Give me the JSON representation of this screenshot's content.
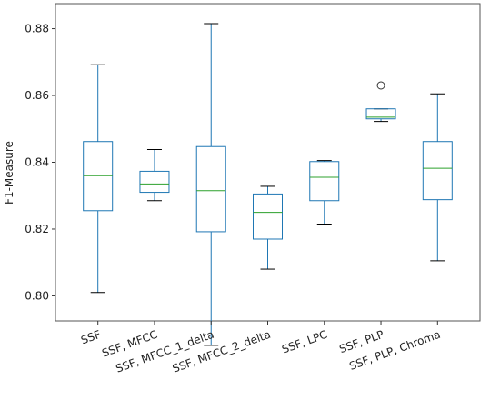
{
  "chart_data": {
    "type": "box",
    "title": "",
    "xlabel": "",
    "ylabel": "F1-Measure",
    "ylim": [
      0.7925,
      0.8875
    ],
    "yticks": [
      0.8,
      0.82,
      0.84,
      0.86,
      0.88
    ],
    "ytick_labels": [
      "0.80",
      "0.82",
      "0.84",
      "0.86",
      "0.88"
    ],
    "categories": [
      "SSF",
      "SSF, MFCC",
      "SSF, MFCC_1_delta",
      "SSF, MFCC_2_delta",
      "SSF, LPC",
      "SSF, PLP",
      "SSF, PLP, Chroma"
    ],
    "boxes": [
      {
        "whisker_low": 0.801,
        "q1": 0.8255,
        "median": 0.836,
        "q3": 0.8462,
        "whisker_high": 0.8692,
        "outliers": []
      },
      {
        "whisker_low": 0.8285,
        "q1": 0.831,
        "median": 0.8335,
        "q3": 0.8373,
        "whisker_high": 0.8438,
        "outliers": []
      },
      {
        "whisker_low": 0.7852,
        "q1": 0.8192,
        "median": 0.8315,
        "q3": 0.8447,
        "whisker_high": 0.8815,
        "outliers": []
      },
      {
        "whisker_low": 0.808,
        "q1": 0.817,
        "median": 0.825,
        "q3": 0.8305,
        "whisker_high": 0.8328,
        "outliers": []
      },
      {
        "whisker_low": 0.8215,
        "q1": 0.8285,
        "median": 0.8355,
        "q3": 0.8402,
        "whisker_high": 0.8405,
        "outliers": []
      },
      {
        "whisker_low": 0.8522,
        "q1": 0.853,
        "median": 0.8535,
        "q3": 0.856,
        "whisker_high": 0.856,
        "outliers": [
          0.863
        ]
      },
      {
        "whisker_low": 0.8105,
        "q1": 0.8288,
        "median": 0.8382,
        "q3": 0.8462,
        "whisker_high": 0.8605,
        "outliers": []
      }
    ],
    "colors": {
      "box": "#1f77b4",
      "median": "#2ca02c",
      "whisker": "#1f77b4",
      "cap": "#000000",
      "frame": "#555555"
    },
    "grid": false,
    "legend": "none"
  }
}
